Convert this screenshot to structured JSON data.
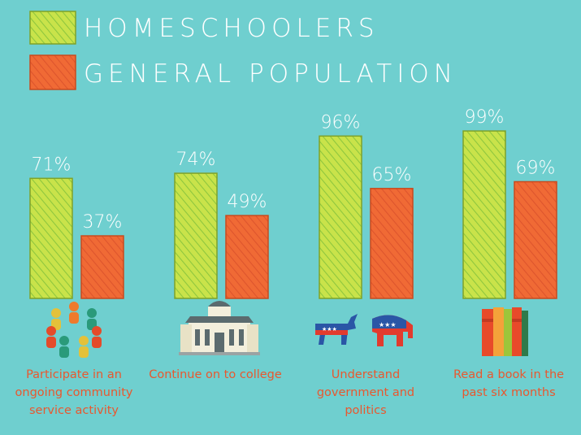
{
  "chart_data": {
    "type": "bar",
    "categories": [
      "Participate in an ongoing community service activity",
      "Continue on to college",
      "Understand government and politics",
      "Read a book in the past six months"
    ],
    "series": [
      {
        "name": "HOMESCHOOLERS",
        "values": [
          71,
          74,
          96,
          99
        ],
        "labels": [
          "71%",
          "74%",
          "96%",
          "99%"
        ]
      },
      {
        "name": "GENERAL POPULATION",
        "values": [
          37,
          49,
          65,
          69
        ],
        "labels": [
          "37%",
          "49%",
          "65%",
          "69%"
        ]
      }
    ],
    "ylim": [
      0,
      100
    ],
    "title": "",
    "xlabel": "",
    "ylabel": "",
    "legend_position": "top-left",
    "grid": false
  },
  "icons": [
    "people-circle-icon",
    "college-building-icon",
    "donkey-elephant-icon",
    "books-icon"
  ],
  "colors": {
    "background": "#6fcfcf",
    "homeschool_fill": "#c9e34a",
    "homeschool_stroke": "#7fa22a",
    "general_fill": "#f06a35",
    "general_stroke": "#c94a1e",
    "label_text": "#ffffff",
    "caption_text": "#e8582f"
  }
}
